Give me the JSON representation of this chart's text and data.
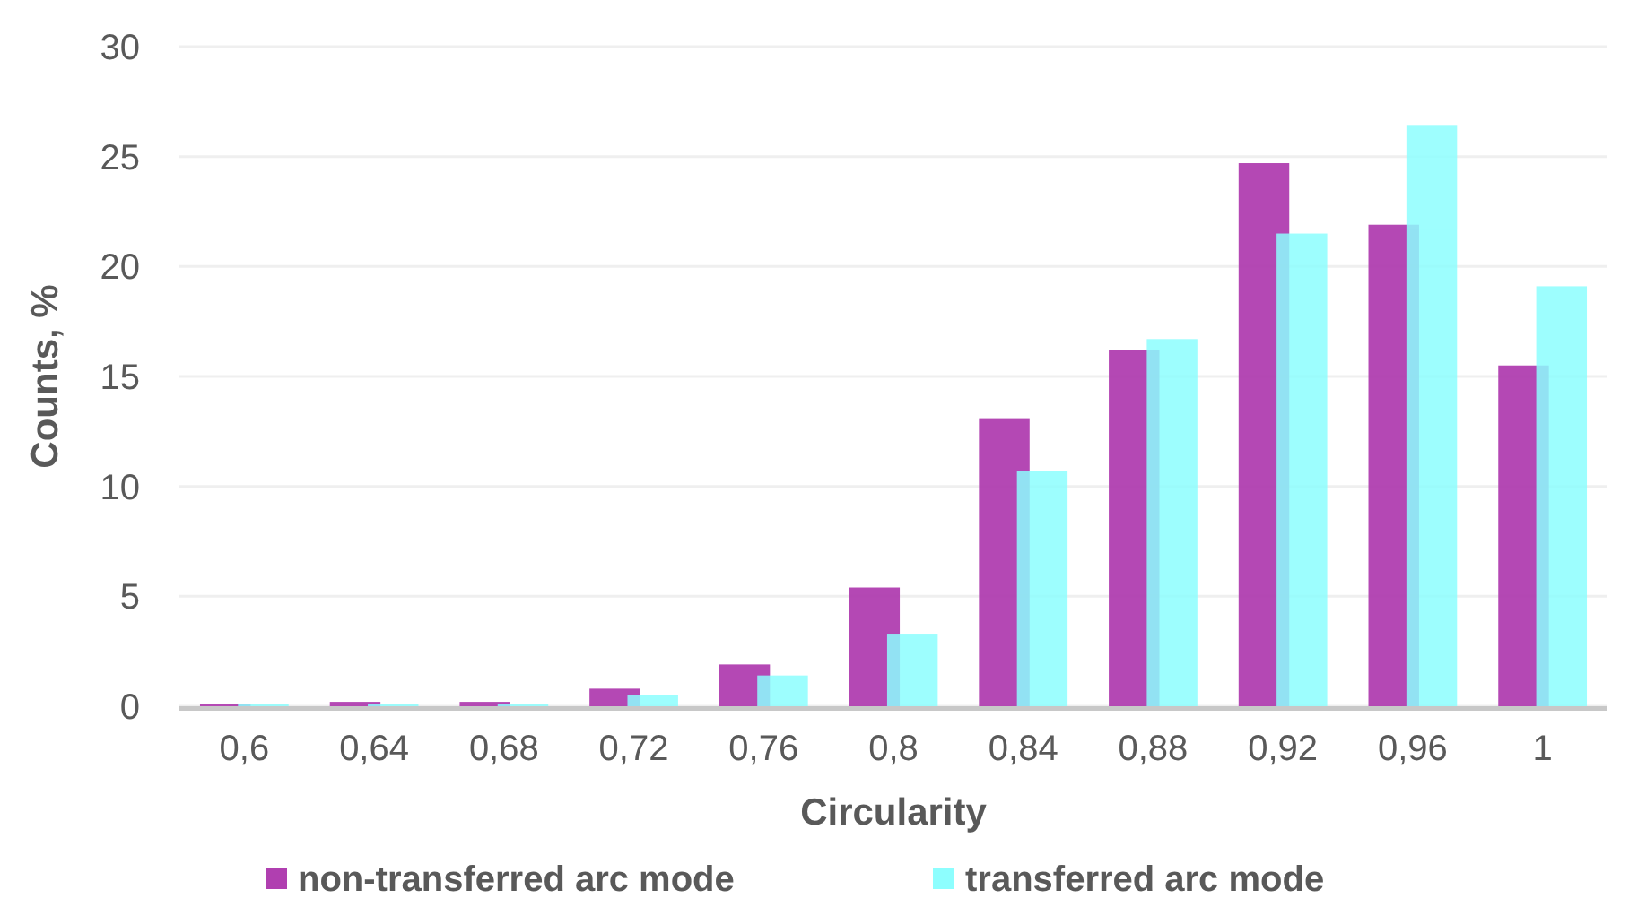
{
  "chart_data": {
    "type": "bar",
    "xlabel": "Circularity",
    "ylabel": "Counts, %",
    "categories": [
      "0,6",
      "0,64",
      "0,68",
      "0,72",
      "0,76",
      "0,8",
      "0,84",
      "0,88",
      "0,92",
      "0,96",
      "1"
    ],
    "series": [
      {
        "name": "non-transferred arc mode",
        "color": "#b03fb0",
        "values": [
          0.1,
          0.2,
          0.2,
          0.8,
          1.9,
          5.4,
          13.1,
          16.2,
          24.7,
          21.9,
          15.5
        ]
      },
      {
        "name": "transferred arc mode",
        "color": "#8dfefe",
        "values": [
          0.1,
          0.1,
          0.1,
          0.5,
          1.4,
          3.3,
          10.7,
          16.7,
          21.5,
          26.4,
          19.1
        ]
      }
    ],
    "ylim": [
      0,
      30
    ],
    "yticks": [
      0,
      5,
      10,
      15,
      20,
      25,
      30
    ],
    "grid": "y",
    "legend": "bottom"
  }
}
